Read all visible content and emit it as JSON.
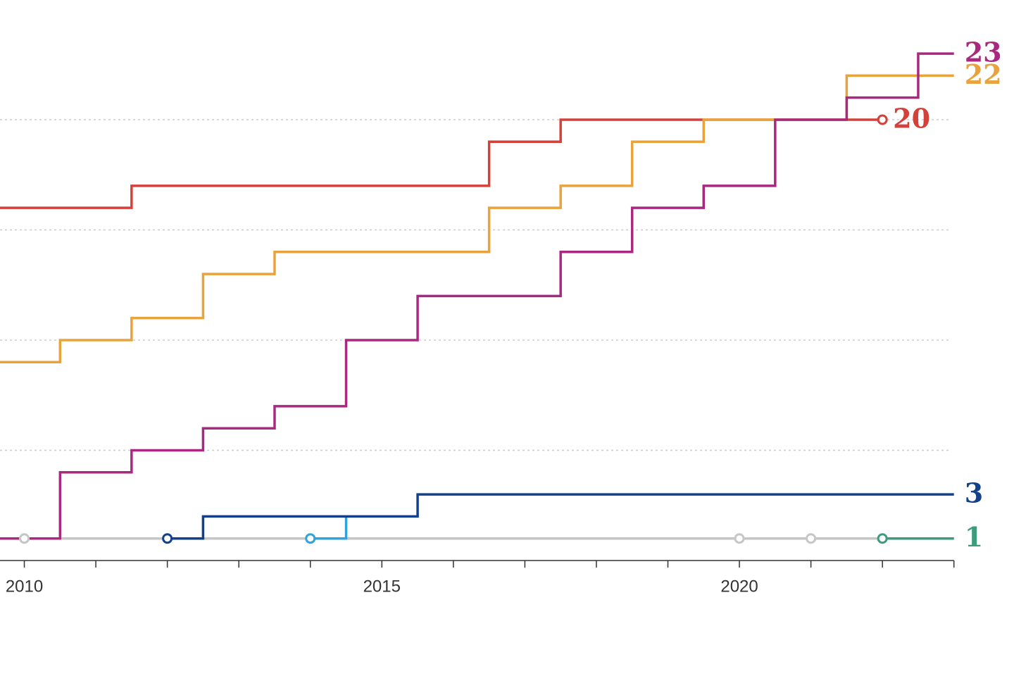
{
  "chart_data": {
    "type": "step",
    "xlim": [
      2009.66,
      2023.84
    ],
    "ylim": [
      0,
      25.43
    ],
    "xticks": [
      2010,
      2015,
      2020
    ],
    "minor_xticks": [
      2010,
      2011,
      2012,
      2013,
      2014,
      2015,
      2016,
      2017,
      2018,
      2019,
      2020,
      2021,
      2022,
      2023
    ],
    "grid_y": [
      5,
      10,
      15,
      20
    ],
    "series": [
      {
        "color": "#c6c6c6",
        "x": [
          2009.66,
          2010,
          2020,
          2021,
          2023
        ],
        "values": [
          1,
          1,
          1,
          1,
          1
        ],
        "marker_x": [
          2010,
          2020,
          2021
        ],
        "end_label": false
      },
      {
        "color": "#2fa3de",
        "x": [
          2014,
          2014.5
        ],
        "values": [
          1,
          2
        ],
        "marker_x": [
          2014
        ],
        "end_label": false
      },
      {
        "color": "#13408a",
        "x": [
          2012,
          2012.5,
          2015.5,
          2023
        ],
        "values": [
          1,
          2,
          3,
          3
        ],
        "marker_x": [
          2012
        ],
        "end_label": true
      },
      {
        "color": "#3d9c7b",
        "x": [
          2022,
          2023
        ],
        "values": [
          1,
          1
        ],
        "marker_x": [
          2022
        ],
        "end_label": true
      },
      {
        "color": "#d3413a",
        "x": [
          2009.66,
          2011.5,
          2016.5,
          2017.5,
          2022
        ],
        "values": [
          16,
          17,
          19,
          20,
          20
        ],
        "marker_x": [
          2022
        ],
        "end_label": true
      },
      {
        "color": "#e9a33c",
        "x": [
          2009.66,
          2010.5,
          2011.5,
          2012.5,
          2013.5,
          2016.5,
          2017.5,
          2018.5,
          2019.5,
          2021.5,
          2023
        ],
        "values": [
          9,
          10,
          11,
          13,
          14,
          16,
          17,
          19,
          20,
          22,
          22
        ],
        "marker_x": [],
        "end_label": true
      },
      {
        "color": "#a8297f",
        "x": [
          2009.66,
          2010.5,
          2011.5,
          2012.5,
          2013.5,
          2014.5,
          2015.5,
          2017.5,
          2018.5,
          2019.5,
          2020.5,
          2021.5,
          2022.5,
          2023
        ],
        "values": [
          1,
          4,
          5,
          6,
          7,
          10,
          12,
          14,
          16,
          17,
          20,
          21,
          23,
          23
        ],
        "marker_x": [],
        "end_label": true
      }
    ]
  }
}
